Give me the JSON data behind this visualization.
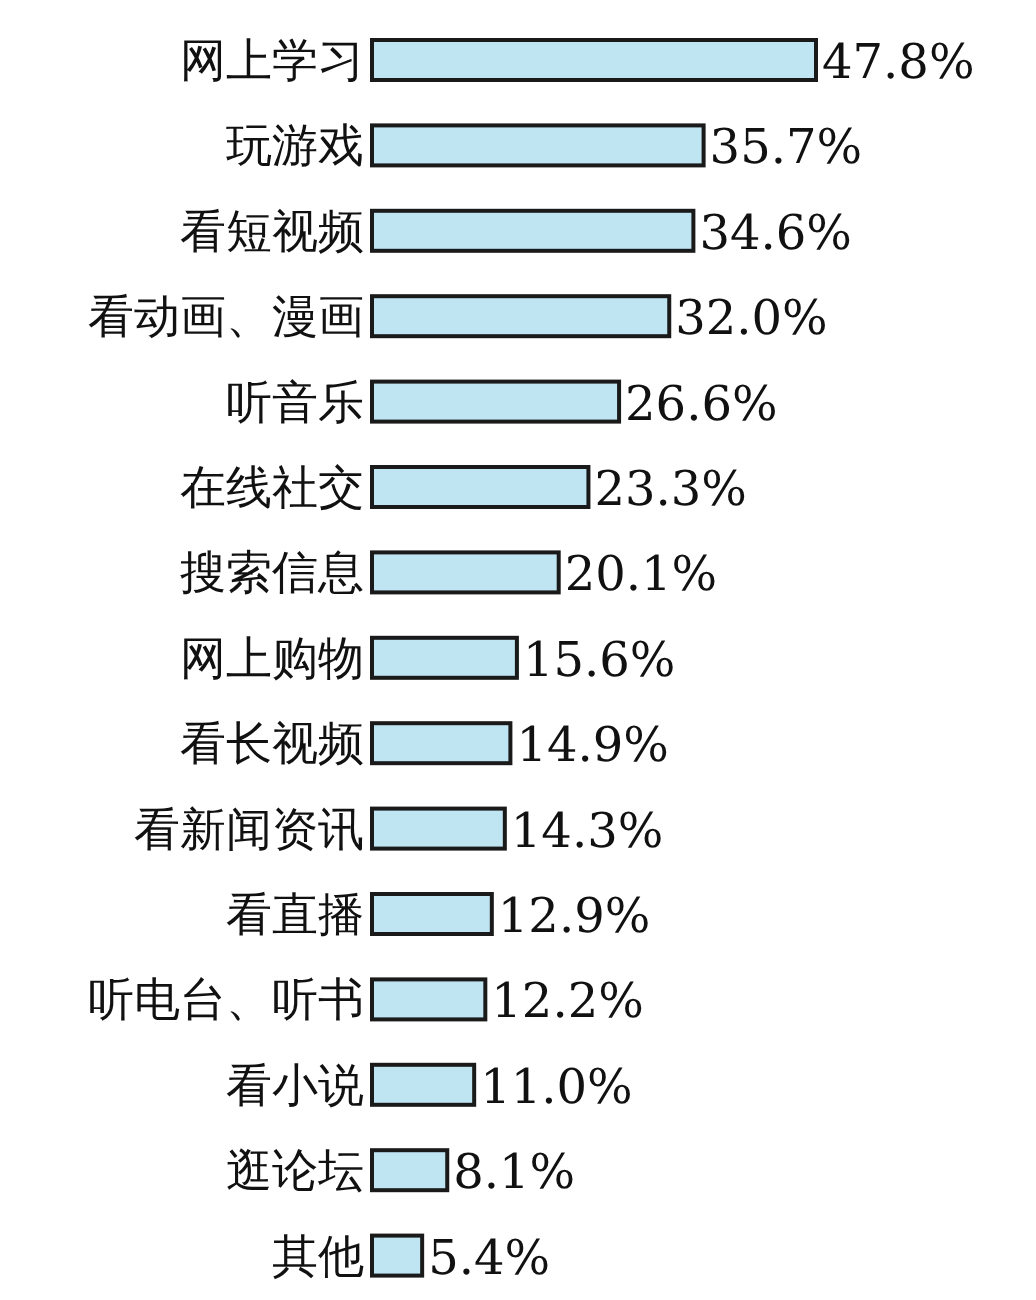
{
  "chart_data": {
    "type": "bar",
    "orientation": "horizontal",
    "data_labels": true,
    "categories": [
      "网上学习",
      "玩游戏",
      "看短视频",
      "看动画、漫画",
      "听音乐",
      "在线社交",
      "搜索信息",
      "网上购物",
      "看长视频",
      "看新闻资讯",
      "看直播",
      "听电台、听书",
      "看小说",
      "逛论坛",
      "其他"
    ],
    "values": [
      47.8,
      35.7,
      34.6,
      32.0,
      26.6,
      23.3,
      20.1,
      15.6,
      14.9,
      14.3,
      12.9,
      12.2,
      11.0,
      8.1,
      5.4
    ],
    "value_labels": [
      "47.8%",
      "35.7%",
      "34.6%",
      "32.0%",
      "26.6%",
      "23.3%",
      "20.1%",
      "15.6%",
      "14.9%",
      "14.3%",
      "12.9%",
      "12.2%",
      "11.0%",
      "8.1%",
      "5.4%"
    ],
    "color": "#bfe4f2"
  }
}
